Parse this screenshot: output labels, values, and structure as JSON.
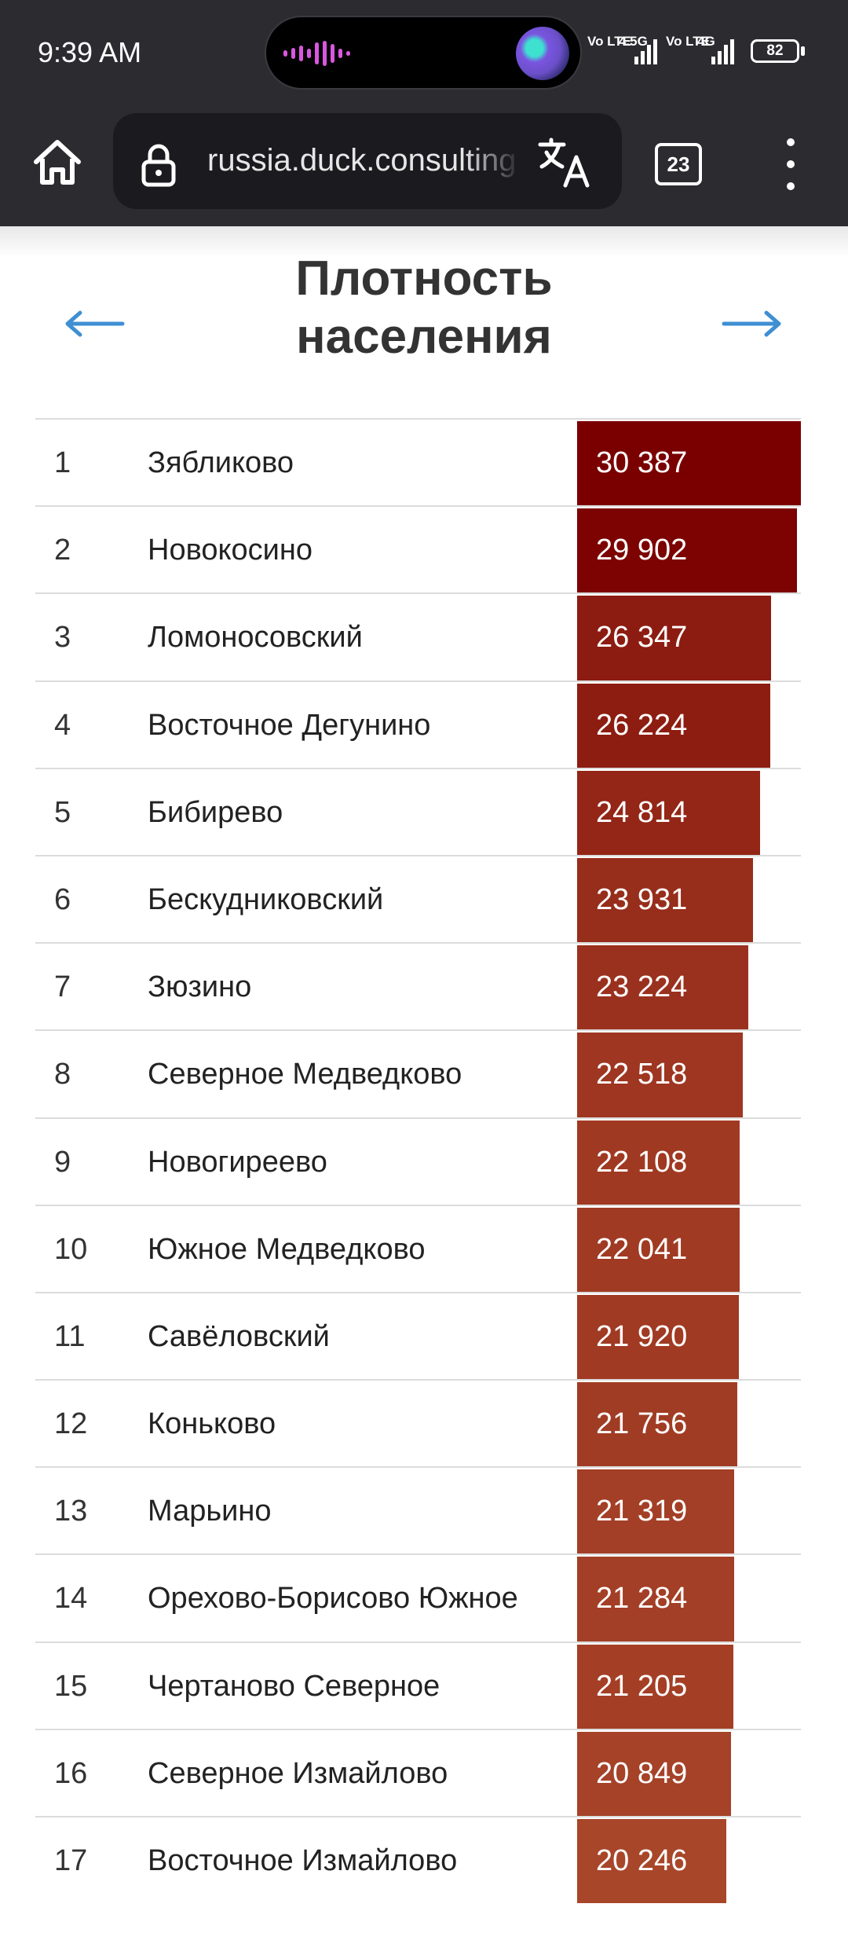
{
  "status_bar": {
    "time": "9:39 AM",
    "network_1_label": "Vo LTE",
    "network_2_label": "4.5G",
    "network_3_label": "Vo LTE",
    "network_4_label": "4G",
    "battery_level": "82"
  },
  "browser": {
    "url": "russia.duck.consulting",
    "tab_count": "23",
    "icons": [
      "home-icon",
      "lock-icon",
      "translate-icon",
      "tabs-icon",
      "more-vert-icon"
    ]
  },
  "page": {
    "title": "Плотность населения",
    "prev_arrow": "←",
    "next_arrow": "→"
  },
  "chart_data": {
    "type": "bar",
    "orientation": "horizontal",
    "bar_scale_max": 30387,
    "color_low": "#a8462a",
    "color_high": "#7a0000",
    "rows": [
      {
        "rank": "1",
        "district": "Зябликово",
        "value": 30387,
        "value_label": "30 387"
      },
      {
        "rank": "2",
        "district": "Новокосино",
        "value": 29902,
        "value_label": "29 902"
      },
      {
        "rank": "3",
        "district": "Ломоносовский",
        "value": 26347,
        "value_label": "26 347"
      },
      {
        "rank": "4",
        "district": "Восточное Дегунино",
        "value": 26224,
        "value_label": "26 224"
      },
      {
        "rank": "5",
        "district": "Бибирево",
        "value": 24814,
        "value_label": "24 814"
      },
      {
        "rank": "6",
        "district": "Бескудниковский",
        "value": 23931,
        "value_label": "23 931"
      },
      {
        "rank": "7",
        "district": "Зюзино",
        "value": 23224,
        "value_label": "23 224"
      },
      {
        "rank": "8",
        "district": "Северное Медведково",
        "value": 22518,
        "value_label": "22 518"
      },
      {
        "rank": "9",
        "district": "Новогиреево",
        "value": 22108,
        "value_label": "22 108"
      },
      {
        "rank": "10",
        "district": "Южное Медведково",
        "value": 22041,
        "value_label": "22 041"
      },
      {
        "rank": "11",
        "district": "Савёловский",
        "value": 21920,
        "value_label": "21 920"
      },
      {
        "rank": "12",
        "district": "Коньково",
        "value": 21756,
        "value_label": "21 756"
      },
      {
        "rank": "13",
        "district": "Марьино",
        "value": 21319,
        "value_label": "21 319"
      },
      {
        "rank": "14",
        "district": "Орехово-Борисово Южное",
        "value": 21284,
        "value_label": "21 284"
      },
      {
        "rank": "15",
        "district": "Чертаново Северное",
        "value": 21205,
        "value_label": "21 205"
      },
      {
        "rank": "16",
        "district": "Северное Измайлово",
        "value": 20849,
        "value_label": "20 849"
      },
      {
        "rank": "17",
        "district": "Восточное Измайлово",
        "value": 20246,
        "value_label": "20 246"
      }
    ]
  }
}
